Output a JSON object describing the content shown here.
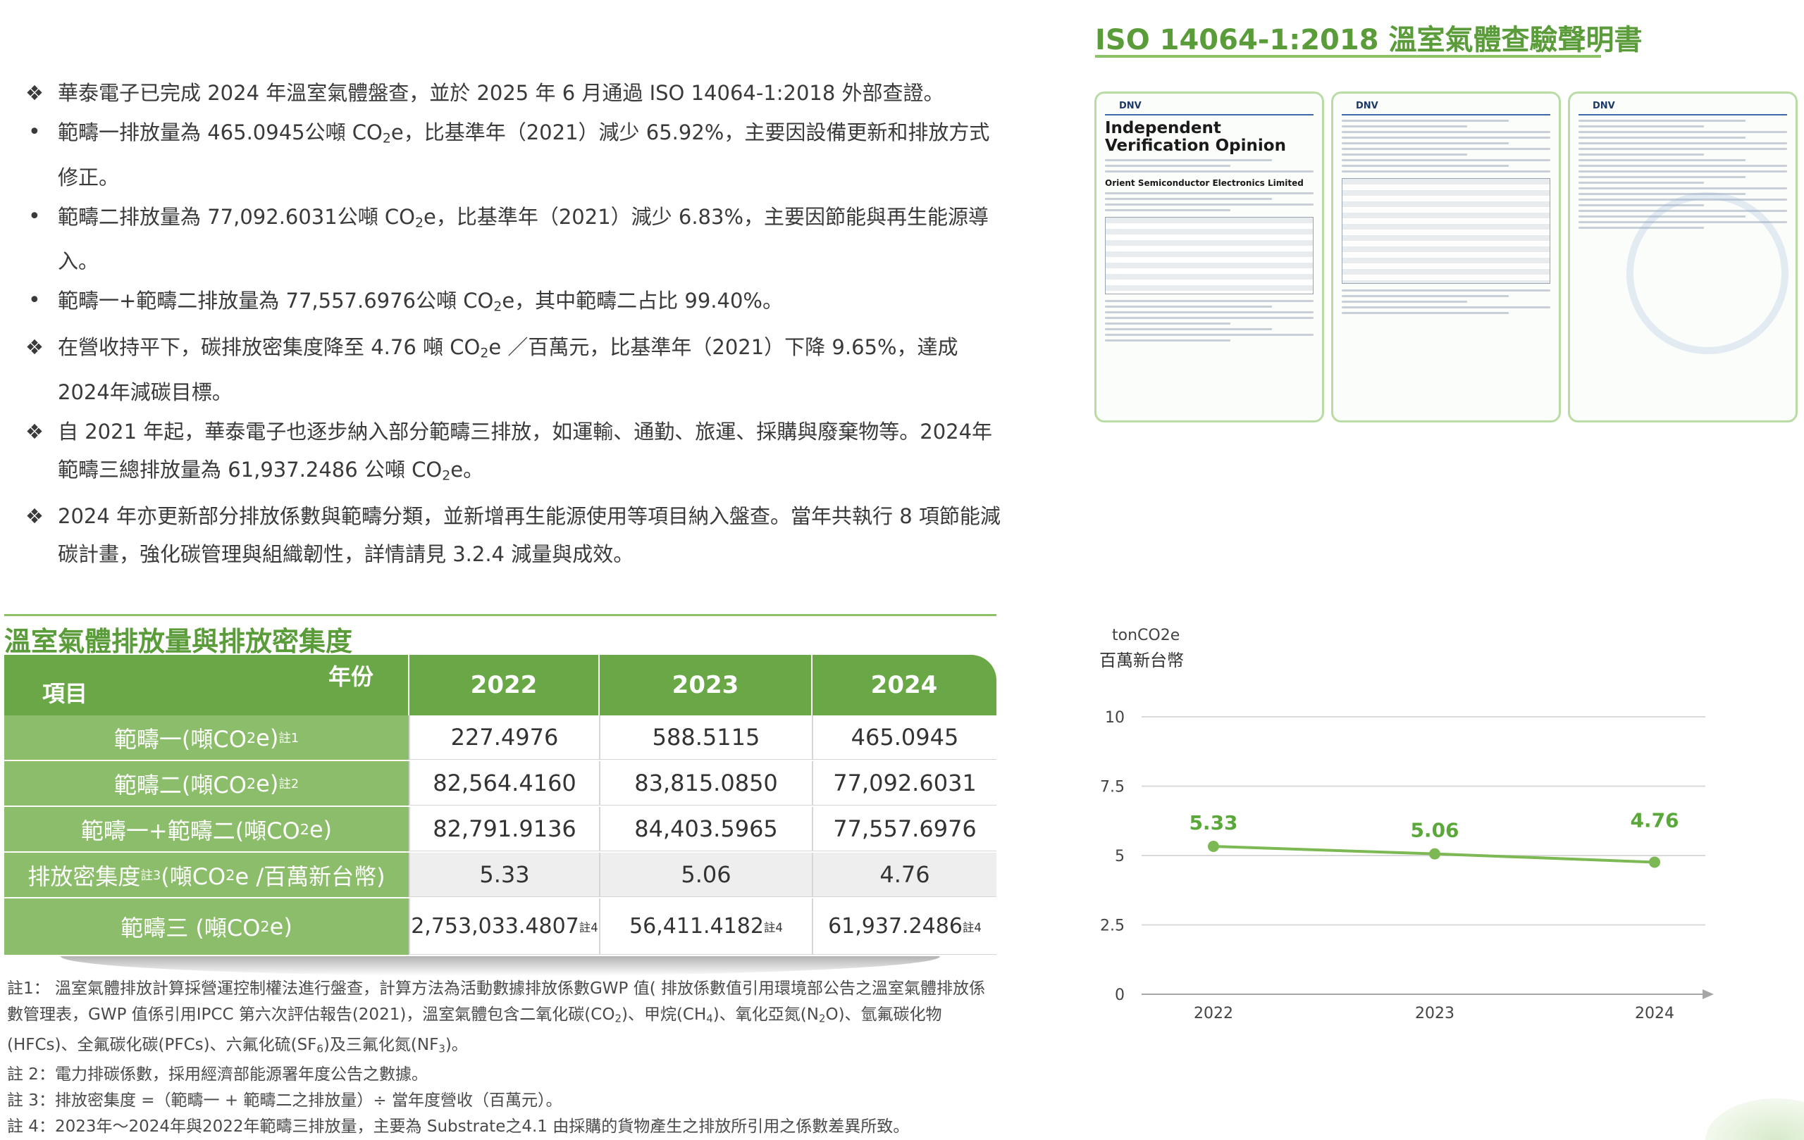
{
  "bullets": [
    {
      "mark": "❖",
      "html": "華泰電子已完成 2024 年溫室氣體盤查，並於 2025 年 6 月通過 ISO 14064-1:2018 外部查證。"
    },
    {
      "mark": "•",
      "html": "範疇一排放量為 465.0945公噸 CO<sub>2</sub>e，比基準年（2021）減少 65.92%，主要因設備更新和排放方式修正。"
    },
    {
      "mark": "•",
      "html": "範疇二排放量為 77,092.6031公噸 CO<sub>2</sub>e，比基準年（2021）減少 6.83%，主要因節能與再生能源導入。"
    },
    {
      "mark": "•",
      "html": "範疇一+範疇二排放量為 77,557.6976公噸 CO<sub>2</sub>e，其中範疇二占比 99.40%。"
    },
    {
      "mark": "❖",
      "html": "在營收持平下，碳排放密集度降至 4.76 噸 CO<sub>2</sub>e ／百萬元，比基準年（2021）下降 9.65%，達成2024年減碳目標。"
    },
    {
      "mark": "❖",
      "html": "自 2021 年起，華泰電子也逐步納入部分範疇三排放，如運輸、通勤、旅運、採購與廢棄物等。2024年範疇三總排放量為 61,937.2486 公噸 CO<sub>2</sub>e。"
    },
    {
      "mark": "❖",
      "html": "2024 年亦更新部分排放係數與範疇分類，並新增再生能源使用等項目納入盤查。當年共執行 8 項節能減碳計畫，強化碳管理與組織韌性，詳情請見 3.2.4 減量與成效。"
    }
  ],
  "iso": {
    "title": "ISO 14064-1:2018 溫室氣體查驗聲明書",
    "cert_brand": "DNV",
    "cert_heading": "Independent Verification Opinion",
    "cert_org": "Orient Semiconductor Electronics Limited"
  },
  "table": {
    "title": "溫室氣體排放量與排放密集度",
    "corner_year": "年份",
    "corner_item": "項目",
    "years": [
      "2022",
      "2023",
      "2024"
    ],
    "rows": [
      {
        "label_html": "範疇一(噸CO<sub>2</sub>e) <sup>註1</sup>",
        "values": [
          "227.4976",
          "588.5115",
          "465.0945"
        ]
      },
      {
        "label_html": "範疇二(噸CO<sub>2</sub>e) <sup>註2</sup>",
        "values": [
          "82,564.4160",
          "83,815.0850",
          "77,092.6031"
        ]
      },
      {
        "label_html": "範疇一+範疇二(噸CO<sub>2</sub>e)",
        "values": [
          "82,791.9136",
          "84,403.5965",
          "77,557.6976"
        ]
      },
      {
        "label_html": "排放密集度 <sup>註3</sup> (噸CO<sub>2</sub>e /百萬新台幣)",
        "values": [
          "5.33",
          "5.06",
          "4.76"
        ]
      },
      {
        "label_html": "範疇三 (噸CO<sub>2</sub>e)",
        "values": [
          "2,753,033.4807<sup>註4</sup>",
          "56,411.4182<sup>註4</sup>",
          "61,937.2486<sup>註4</sup>"
        ]
      }
    ]
  },
  "notes": [
    "註1： 溫室氣體排放計算採營運控制權法進行盤查，計算方法為活動數據排放係數GWP 值( 排放係數值引用環境部公告之溫室氣體排放係數管理表，GWP 值係引用IPCC 第六次評估報告(2021)，溫室氣體包含二氧化碳(CO<sub>2</sub>)、甲烷(CH<sub>4</sub>)、氧化亞氮(N<sub>2</sub>O)、氫氟碳化物(HFCs)、全氟碳化碳(PFCs)、六氟化硫(SF<sub>6</sub>)及三氟化氮(NF<sub>3</sub>)。",
    "註 2：電力排碳係數，採用經濟部能源署年度公告之數據。",
    "註 3：排放密集度 =（範疇一 + 範疇二之排放量）÷ 當年度營收（百萬元）。",
    "註 4：2023年～2024年與2022年範疇三排放量，主要為 Substrate之4.1 由採購的貨物產生之排放所引用之係數差異所致。"
  ],
  "chart_data": {
    "type": "line",
    "units": [
      "tonCO2e",
      "百萬新台幣"
    ],
    "categories": [
      "2022",
      "2023",
      "2024"
    ],
    "values": [
      5.33,
      5.06,
      4.76
    ],
    "data_labels": [
      "5.33",
      "5.06",
      "4.76"
    ],
    "yticks": [
      "0",
      "2.5",
      "5",
      "7.5",
      "10"
    ],
    "ylim": [
      0,
      10
    ],
    "grid": true,
    "line_color": "#7cb854",
    "label_color": "#5aa83a"
  }
}
